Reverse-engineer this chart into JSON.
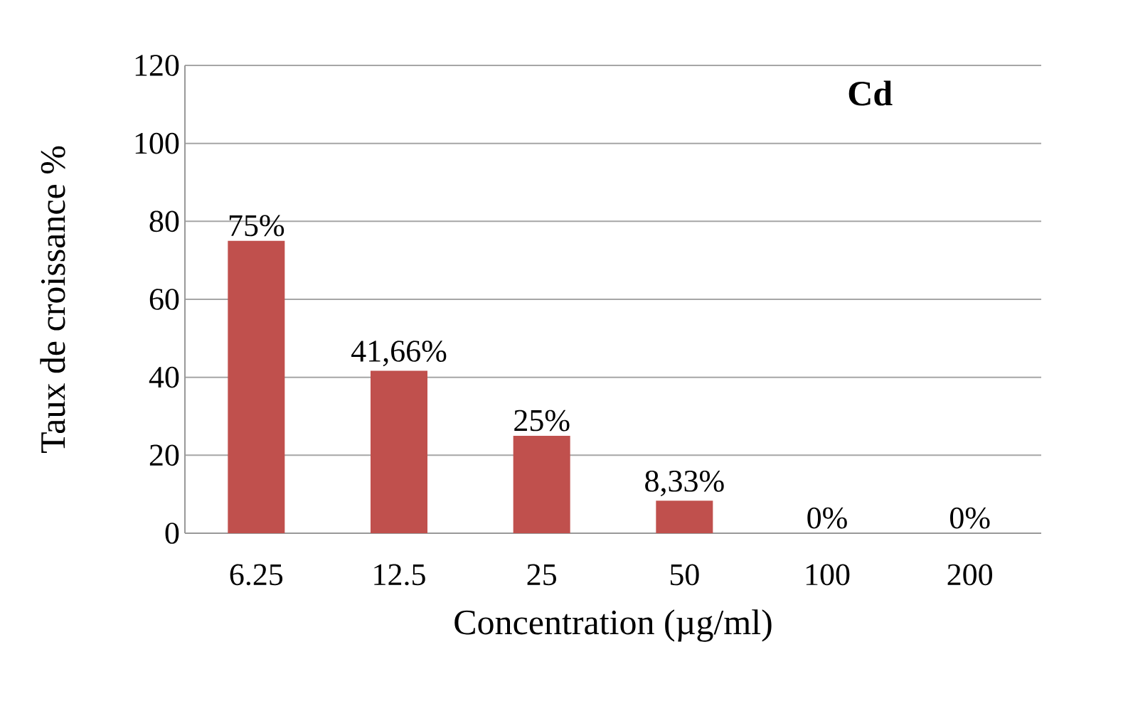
{
  "chart_data": {
    "type": "bar",
    "title": "Cd",
    "xlabel": "Concentration  (µg/ml)",
    "ylabel": "Taux de croissance  %",
    "categories": [
      "6.25",
      "12.5",
      "25",
      "50",
      "100",
      "200"
    ],
    "values": [
      75,
      41.66,
      25,
      8.33,
      0,
      0
    ],
    "value_labels": [
      "75%",
      "41,66%",
      "25%",
      "8,33%",
      "0%",
      "0%"
    ],
    "color": "#c0504d",
    "ylim": [
      0,
      120
    ],
    "yticks": [
      0,
      20,
      40,
      60,
      80,
      100,
      120
    ],
    "grid": "y"
  }
}
